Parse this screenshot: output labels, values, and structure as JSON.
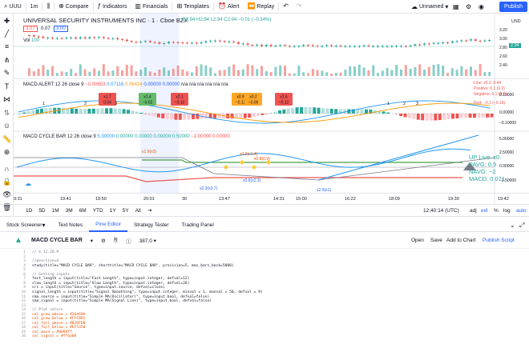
{
  "toolbar": {
    "symbol": "UUU",
    "interval": "1m",
    "compare": "Compare",
    "indicators": "Indicators",
    "financials": "Financials",
    "templates": "Templates",
    "alert": "Alert",
    "replay": "Replay",
    "layout_name": "Unnamed",
    "publish": "Publish"
  },
  "chart": {
    "title": "UNIVERSAL SECURITY INSTRUMENTS INC · 1 · Cboe BZX",
    "ohlc": "O2.94 H2.94 L2.94 C2.94 −0.01 (−0.34%)",
    "price_box_sell": "3.07",
    "price_box_mid": "0.07",
    "price_box_buy": "3.00",
    "currency": "USD",
    "vol_label": "Vol",
    "vol_value": "100",
    "last_price": "2.94",
    "price_axis": [
      "3.20",
      "3.00",
      "2.80",
      "2.60",
      "2.40",
      "0.10000",
      "0.00000",
      "−0.10000",
      "5.00000",
      "2.50000",
      "0.00000",
      "−2.50000"
    ],
    "macd_alert_label": "MACD ALERT",
    "macd_alert_params": "12 26 close 9",
    "macd_alert_values": [
      "−0.00653",
      "0.07116",
      "0.06424",
      "0.00000",
      "0.00000",
      "n/a",
      "n/a",
      "n/a",
      "n/a",
      "n/a",
      "n/a"
    ],
    "macd_alert_side": {
      "line1": "Line: x5.2, 0.44",
      "line2": "Positive: 6.1 (0.2)",
      "line3": "Negative: 6.1 (0.2)",
      "line4": "Red: −0.1 (−0.16)"
    },
    "alert_boxes": [
      {
        "top": "x1.7",
        "bottom": "0.04",
        "color": "#ef5350"
      },
      {
        "top": "x1.4",
        "bottom": "−0.02",
        "color": "#66bb6a"
      },
      {
        "top": "x2.1",
        "bottom": "−0.13",
        "color": "#ef5350"
      },
      {
        "top": "x0.9",
        "bottom": "−0.12",
        "color": "#ffa726"
      },
      {
        "top": "x0.2",
        "bottom": "−0.06",
        "color": "#ffa726"
      },
      {
        "top": "x2.6",
        "bottom": "−0.12",
        "color": "#ef5350"
      }
    ],
    "alert_numbers": [
      "1",
      "2",
      "3",
      "1",
      "2",
      "3"
    ],
    "macd_cycle_label": "MACD CYCLE BAR",
    "macd_cycle_params": "12 26 close 9",
    "macd_cycle_values": [
      "5.30000",
      "0.00000",
      "0.00000",
      "0.00000",
      "0.50000",
      "−2.00000",
      "0.00000"
    ],
    "cycle_annotations": [
      "x1.9(x2)",
      "x0.9(x1.4)",
      "x0.8(0.9)",
      "x2.3(x3.7)",
      "x0.6(x2.3)",
      "x2.9(x1)"
    ],
    "cycle_side": {
      "up_live": "UP Live: x0.",
      "pavg": "PAVG: 0.5",
      "navg": "NAVG: −2",
      "macd": "MACD: 0.071"
    },
    "time_labels": [
      "9:31",
      "19:41",
      "19:50",
      "20:01",
      "30",
      "13:47",
      "14:31",
      "15:00",
      "16:22",
      "18:09",
      "19:30",
      "19:42"
    ],
    "crosshair_time": "20:01"
  },
  "range_bar": {
    "ranges": [
      "1D",
      "5D",
      "1M",
      "3M",
      "6M",
      "YTD",
      "1Y",
      "5Y",
      "All"
    ],
    "clock": "12:40:14 (UTC)",
    "adj": "adj",
    "ext": "ext",
    "pct": "%",
    "log": "log",
    "auto": "auto"
  },
  "bottom_tabs": [
    "Stock Screener",
    "Text Notes",
    "Pine Editor",
    "Strategy Tester",
    "Trading Panel"
  ],
  "editor": {
    "script_name": "MACD CYCLE BAR",
    "version": "387.0",
    "open": "Open",
    "save": "Save",
    "add_to_chart": "Add to Chart",
    "publish_script": "Publish Script"
  },
  "code_lines": [
    "// © 12.26.9",
    "",
    "//@version=4",
    "study(title=\"MACD CYCLE BAR\", shorttitle=\"MACD CYCLE BAR\", precision=5, max_bars_back=5000)",
    "",
    "// Getting inputs",
    "fast_length = input(title=\"Fast Length\", type=input.integer, defval=12)",
    "slow_length = input(title=\"Slow Length\", type=input.integer, defval=26)",
    "src = input(title=\"Source\", type=input.source, defval=close)",
    "signal_length = input(title=\"Signal Smoothing\", type=input.integer, minval = 1, maxval = 50, defval = 9)",
    "sma_source = input(title=\"Simple MA(Oscillator)\", type=input.bool, defval=false)",
    "sma_signal = input(title=\"Simple MA(Signal Line)\", type=input.bool, defval=false)",
    "",
    "// Plot colors",
    "col_grow_above = #26A69A",
    "col_grow_below = #FFCDD2",
    "col_fall_above = #B2DFDB",
    "col_fall_below = #EF5350",
    "col_macd = #0094ff",
    "col_signal = #ff6a00"
  ],
  "colors": {
    "up": "#26a69a",
    "down": "#ef5350",
    "accent": "#2962ff",
    "macd": "#2196f3",
    "signal": "#ff9800"
  }
}
